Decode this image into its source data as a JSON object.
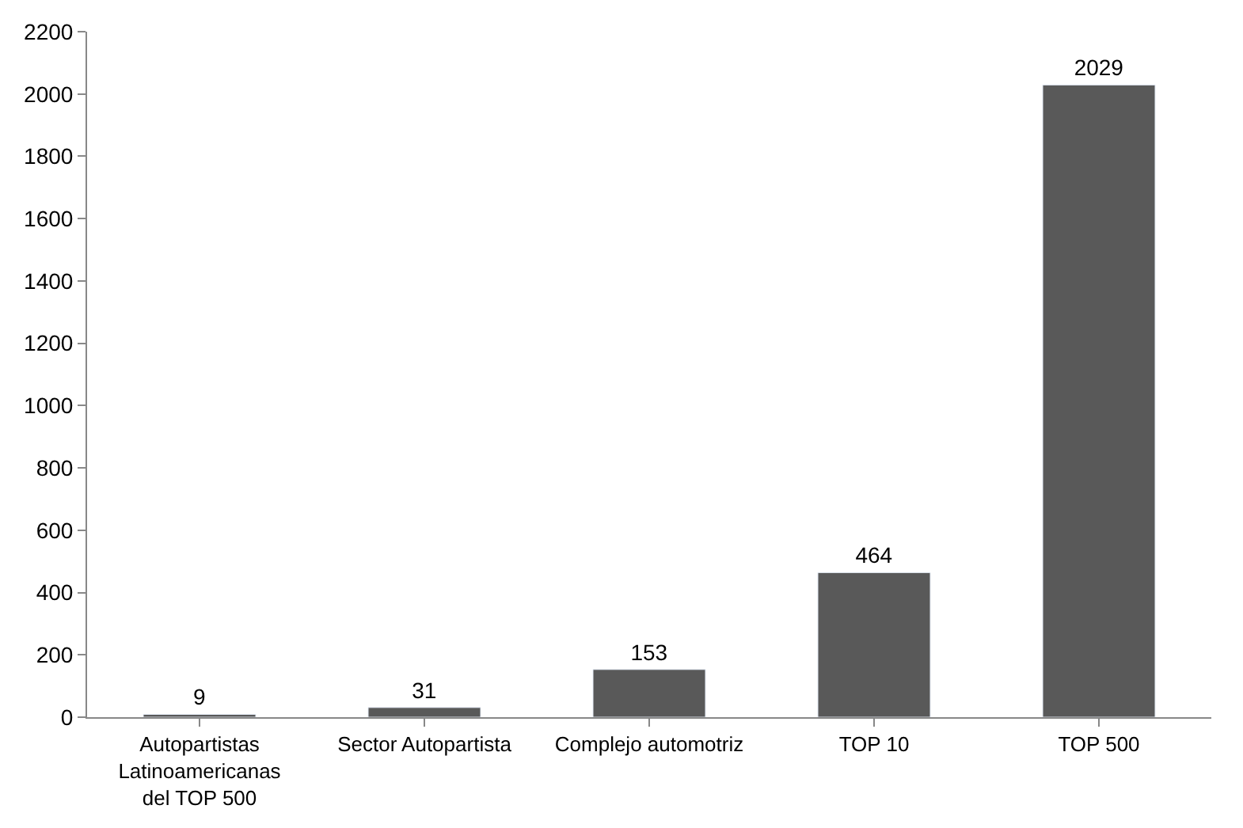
{
  "chart_data": {
    "type": "bar",
    "categories": [
      "Autopartistas Latinoamericanas del TOP 500",
      "Sector Autopartista",
      "Complejo automotriz",
      "TOP 10",
      "TOP 500"
    ],
    "values": [
      9,
      31,
      153,
      464,
      2029
    ],
    "color": "#595959",
    "ylim": [
      0,
      2200
    ],
    "yticks": [
      0,
      200,
      400,
      600,
      800,
      1000,
      1200,
      1400,
      1600,
      1800,
      2000,
      2200
    ],
    "data_labels": true
  }
}
